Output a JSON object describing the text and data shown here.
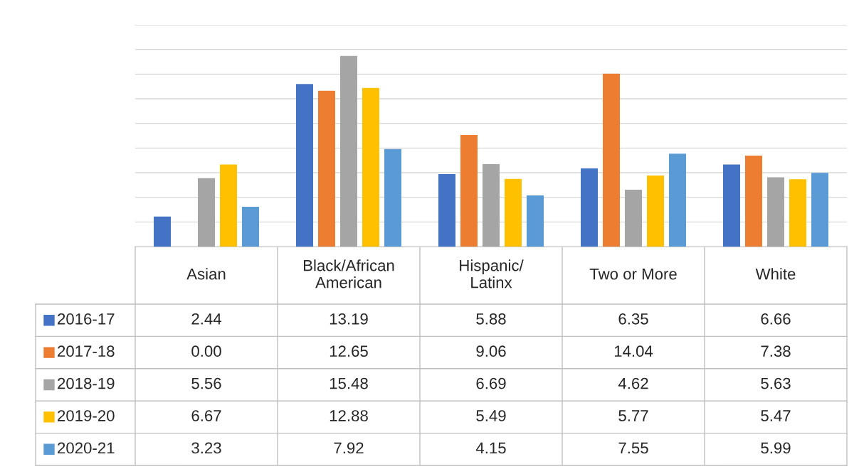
{
  "chart_data": {
    "type": "bar",
    "categories": [
      "Asian",
      "Black/African\nAmerican",
      "Hispanic/\nLatinx",
      "Two or More",
      "White"
    ],
    "series": [
      {
        "name": "2016-17",
        "color": "#4472c4",
        "values": [
          2.44,
          13.19,
          5.88,
          6.35,
          6.66
        ]
      },
      {
        "name": "2017-18",
        "color": "#ed7d31",
        "values": [
          0.0,
          12.65,
          9.06,
          14.04,
          7.38
        ],
        "value_labels": [
          "0.00",
          "12.65",
          "9.06",
          "14.04",
          "7.38"
        ]
      },
      {
        "name": "2018-19",
        "color": "#a5a5a5",
        "values": [
          5.56,
          15.48,
          6.69,
          4.62,
          5.63
        ]
      },
      {
        "name": "2019-20",
        "color": "#ffc000",
        "values": [
          6.67,
          12.88,
          5.49,
          5.77,
          5.47
        ]
      },
      {
        "name": "2020-21",
        "color": "#5b9bd5",
        "values": [
          3.23,
          7.92,
          4.15,
          7.55,
          5.99
        ]
      }
    ],
    "ylim": [
      0,
      18
    ],
    "yticks": [
      {
        "value": 0,
        "label": null
      },
      {
        "value": 2,
        "label": null
      },
      {
        "value": 4,
        "label": null
      },
      {
        "value": 6,
        "label": null
      },
      {
        "value": 8,
        "label": null
      },
      {
        "value": 10,
        "label": null
      },
      {
        "value": 12,
        "label": null
      },
      {
        "value": 14,
        "label": null
      },
      {
        "value": 16,
        "label": null
      },
      {
        "value": 18,
        "label": null
      }
    ],
    "grid": "y",
    "data_labels": true,
    "legend": "bottom left"
  }
}
